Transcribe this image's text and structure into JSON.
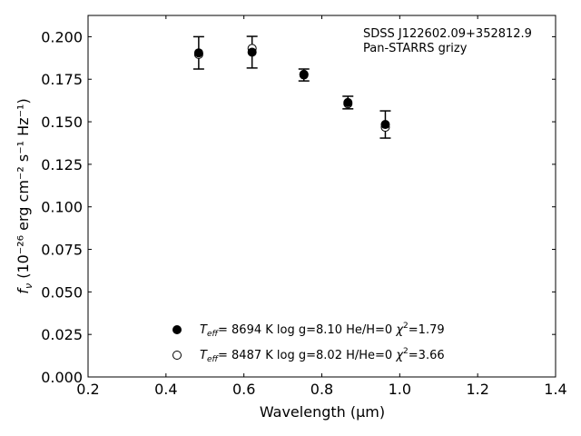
{
  "chart_data": {
    "type": "scatter",
    "title": "",
    "xlabel": "Wavelength",
    "xlabel_unit": "(μm)",
    "ylabel": "(10⁻²⁶ erg cm⁻² s⁻¹ Hz⁻¹)",
    "xlim": [
      0.2,
      1.4
    ],
    "ylim": [
      0.0,
      0.2125
    ],
    "x_ticks": [
      0.2,
      0.4,
      0.6,
      0.8,
      1.0,
      1.2,
      1.4
    ],
    "x_tick_labels": [
      "0.2",
      "0.4",
      "0.6",
      "0.8",
      "1.0",
      "1.2",
      "1.4"
    ],
    "y_ticks": [
      0.0,
      0.025,
      0.05,
      0.075,
      0.1,
      0.125,
      0.15,
      0.175,
      0.2
    ],
    "y_tick_labels": [
      "0.000",
      "0.025",
      "0.050",
      "0.075",
      "0.100",
      "0.125",
      "0.150",
      "0.175",
      "0.200"
    ],
    "grid": false,
    "annotation": [
      "SDSS J122602.09+352812.9",
      "Pan-STARRS grizy"
    ],
    "observed": {
      "x": [
        0.484,
        0.621,
        0.754,
        0.867,
        0.963
      ],
      "y": [
        0.1905,
        0.1909,
        0.1775,
        0.1613,
        0.1484
      ],
      "yerr": [
        0.0095,
        0.0093,
        0.0035,
        0.0037,
        0.008
      ]
    },
    "series": [
      {
        "marker": "filled-circle",
        "x": [
          0.484,
          0.621,
          0.754,
          0.867,
          0.963
        ],
        "y": [
          0.1905,
          0.1909,
          0.1775,
          0.1613,
          0.1484
        ],
        "legend": {
          "teff": "8694 K",
          "logg": "log g=8.10",
          "comp": "He/H=0",
          "chi2": "=1.79"
        }
      },
      {
        "marker": "open-circle",
        "x": [
          0.484,
          0.621,
          0.754,
          0.867,
          0.963
        ],
        "y": [
          0.1896,
          0.1931,
          0.1779,
          0.1606,
          0.1468
        ],
        "legend": {
          "teff": "8487 K",
          "logg": "log g=8.02",
          "comp": "H/He=0",
          "chi2": "=3.66"
        }
      }
    ],
    "legend_placement": "lower-center"
  }
}
